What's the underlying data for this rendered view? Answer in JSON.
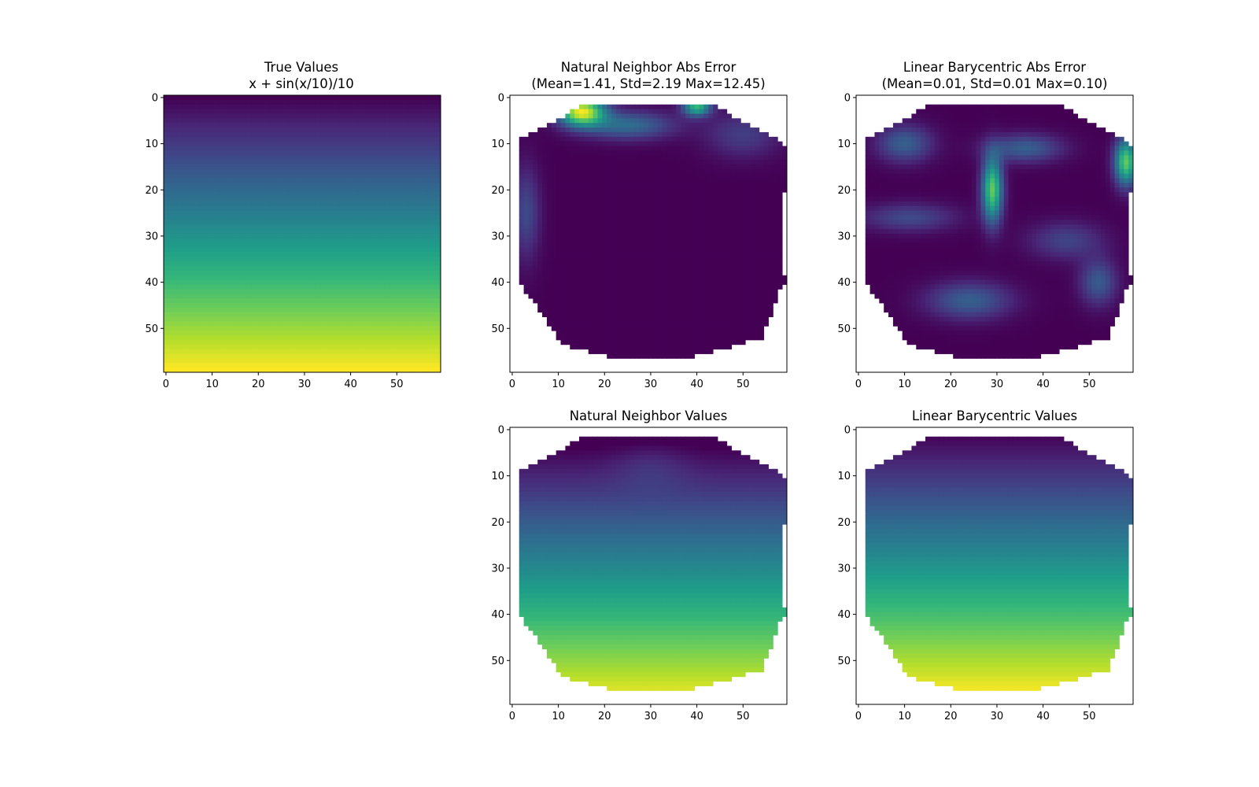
{
  "figure": {
    "background": "#ffffff",
    "colormap": "viridis"
  },
  "chart_data": [
    {
      "type": "heatmap",
      "id": "true",
      "title": "True Values",
      "subtitle": "x + sin(x/10)/10",
      "grid_shape": [
        60,
        60
      ],
      "x_ticks": [
        "0",
        "10",
        "20",
        "30",
        "40",
        "50"
      ],
      "y_ticks": [
        "0",
        "10",
        "20",
        "30",
        "40",
        "50"
      ],
      "xlim": [
        -0.5,
        59.5
      ],
      "ylim": [
        59.5,
        -0.5
      ],
      "grid": false,
      "colormap": "viridis",
      "value_range": [
        0,
        1
      ],
      "pattern": "vertical gradient: dark purple at row 0 to yellow at row 59"
    },
    {
      "type": "heatmap",
      "id": "nn_err",
      "title": "Natural Neighbor Abs Error",
      "subtitle": "(Mean=1.41, Std=2.19 Max=12.45)",
      "stats": {
        "mean": 1.41,
        "std": 2.19,
        "max": 12.45
      },
      "grid_shape": [
        60,
        60
      ],
      "x_ticks": [
        "0",
        "10",
        "20",
        "30",
        "40",
        "50"
      ],
      "y_ticks": [
        "0",
        "10",
        "20",
        "30",
        "40",
        "50"
      ],
      "xlim": [
        -0.5,
        59.5
      ],
      "ylim": [
        59.5,
        -0.5
      ],
      "grid": false,
      "colormap": "viridis",
      "pattern": "mostly dark purple; high errors near the top edge around columns 15 and 40; blue patches on the left edge"
    },
    {
      "type": "heatmap",
      "id": "lb_err",
      "title": "Linear Barycentric Abs Error",
      "subtitle": "(Mean=0.01, Std=0.01 Max=0.10)",
      "stats": {
        "mean": 0.01,
        "std": 0.01,
        "max": 0.1
      },
      "grid_shape": [
        60,
        60
      ],
      "x_ticks": [
        "0",
        "10",
        "20",
        "30",
        "40",
        "50"
      ],
      "y_ticks": [
        "0",
        "10",
        "20",
        "30",
        "40",
        "50"
      ],
      "xlim": [
        -0.5,
        59.5
      ],
      "ylim": [
        59.5,
        -0.5
      ],
      "grid": false,
      "colormap": "viridis",
      "pattern": "dark purple with triangular blue/teal streaks; peaks near column 29 row 20 and right edge row 15"
    },
    {
      "type": "heatmap",
      "id": "nn_val",
      "title": "Natural Neighbor Values",
      "grid_shape": [
        60,
        60
      ],
      "x_ticks": [
        "0",
        "10",
        "20",
        "30",
        "40",
        "50"
      ],
      "y_ticks": [
        "0",
        "10",
        "20",
        "30",
        "40",
        "50"
      ],
      "xlim": [
        -0.5,
        59.5
      ],
      "ylim": [
        59.5,
        -0.5
      ],
      "grid": false,
      "colormap": "viridis",
      "pattern": "vertical gradient purple to yellow, slightly distorted near the top"
    },
    {
      "type": "heatmap",
      "id": "lb_val",
      "title": "Linear Barycentric Values",
      "grid_shape": [
        60,
        60
      ],
      "x_ticks": [
        "0",
        "10",
        "20",
        "30",
        "40",
        "50"
      ],
      "y_ticks": [
        "0",
        "10",
        "20",
        "30",
        "40",
        "50"
      ],
      "xlim": [
        -0.5,
        59.5
      ],
      "ylim": [
        59.5,
        -0.5
      ],
      "grid": false,
      "colormap": "viridis",
      "pattern": "smooth vertical gradient purple to yellow"
    }
  ]
}
